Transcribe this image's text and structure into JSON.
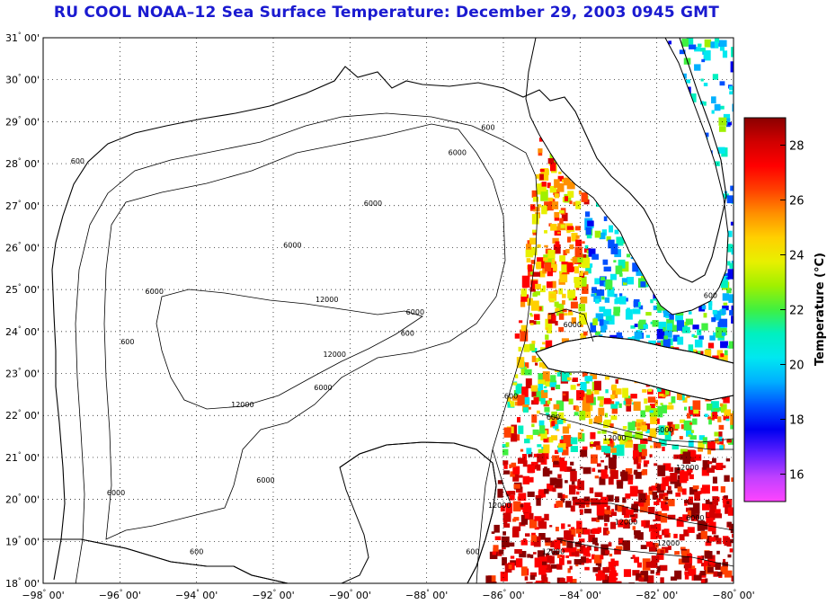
{
  "title": "RU COOL  NOAA–12  Sea Surface Temperature:  December 29, 2003 0945 GMT",
  "map": {
    "lon_range": [
      -98,
      -80
    ],
    "lat_range": [
      18,
      31
    ],
    "lon_ticks": [
      "−98",
      "−96",
      "−94",
      "−92",
      "−90",
      "−88",
      "−86",
      "−84",
      "−82",
      "−80"
    ],
    "lat_ticks": [
      "31",
      "30",
      "29",
      "28",
      "27",
      "26",
      "25",
      "24",
      "23",
      "22",
      "21",
      "20",
      "19",
      "18"
    ],
    "tick_minutes": "00'",
    "grid": "dotted",
    "contour_labels": [
      {
        "text": "600",
        "lon": -97.1,
        "lat": 28.0
      },
      {
        "text": "600",
        "lon": -95.8,
        "lat": 23.7
      },
      {
        "text": "600",
        "lon": -94.0,
        "lat": 18.7
      },
      {
        "text": "600",
        "lon": -88.5,
        "lat": 23.9
      },
      {
        "text": "600",
        "lon": -86.4,
        "lat": 28.8
      },
      {
        "text": "600",
        "lon": -85.8,
        "lat": 22.4
      },
      {
        "text": "600",
        "lon": -84.7,
        "lat": 21.9
      },
      {
        "text": "600",
        "lon": -86.8,
        "lat": 18.7
      },
      {
        "text": "600",
        "lon": -80.6,
        "lat": 24.8
      },
      {
        "text": "6000",
        "lon": -87.2,
        "lat": 28.2
      },
      {
        "text": "6000",
        "lon": -89.4,
        "lat": 27.0
      },
      {
        "text": "6000",
        "lon": -91.5,
        "lat": 26.0
      },
      {
        "text": "6000",
        "lon": -95.1,
        "lat": 24.9
      },
      {
        "text": "6000",
        "lon": -88.3,
        "lat": 24.4
      },
      {
        "text": "6000",
        "lon": -90.7,
        "lat": 22.6
      },
      {
        "text": "6000",
        "lon": -92.2,
        "lat": 20.4
      },
      {
        "text": "6000",
        "lon": -96.1,
        "lat": 20.1
      },
      {
        "text": "6000",
        "lon": -84.2,
        "lat": 24.1
      },
      {
        "text": "6000",
        "lon": -81.8,
        "lat": 21.6
      },
      {
        "text": "6000",
        "lon": -81.0,
        "lat": 19.5
      },
      {
        "text": "12000",
        "lon": -90.6,
        "lat": 24.7
      },
      {
        "text": "12000",
        "lon": -90.4,
        "lat": 23.4
      },
      {
        "text": "12000",
        "lon": -92.8,
        "lat": 22.2
      },
      {
        "text": "12000",
        "lon": -83.1,
        "lat": 21.4
      },
      {
        "text": "12000",
        "lon": -81.2,
        "lat": 20.7
      },
      {
        "text": "12000",
        "lon": -82.8,
        "lat": 19.4
      },
      {
        "text": "12000",
        "lon": -86.1,
        "lat": 19.8
      },
      {
        "text": "12000",
        "lon": -84.7,
        "lat": 18.7
      },
      {
        "text": "12000",
        "lon": -81.7,
        "lat": 18.9
      }
    ]
  },
  "colorbar": {
    "label": "Temperature (°C)",
    "range": [
      15,
      29
    ],
    "ticks": [
      "28",
      "26",
      "24",
      "22",
      "20",
      "18",
      "16"
    ],
    "tick_values": [
      28,
      26,
      24,
      22,
      20,
      18,
      16
    ],
    "colors": [
      "#ff44ff",
      "#c040ff",
      "#6020ff",
      "#0000f0",
      "#0050ff",
      "#00b0ff",
      "#00e8f0",
      "#00f0c0",
      "#40f040",
      "#a0f000",
      "#e8f000",
      "#ffd000",
      "#ff9000",
      "#ff4000",
      "#ff0000",
      "#d00000",
      "#8a0000"
    ]
  },
  "colors": {
    "title": "#1a1ad0",
    "coast": "#000000",
    "contour": "#000000"
  }
}
